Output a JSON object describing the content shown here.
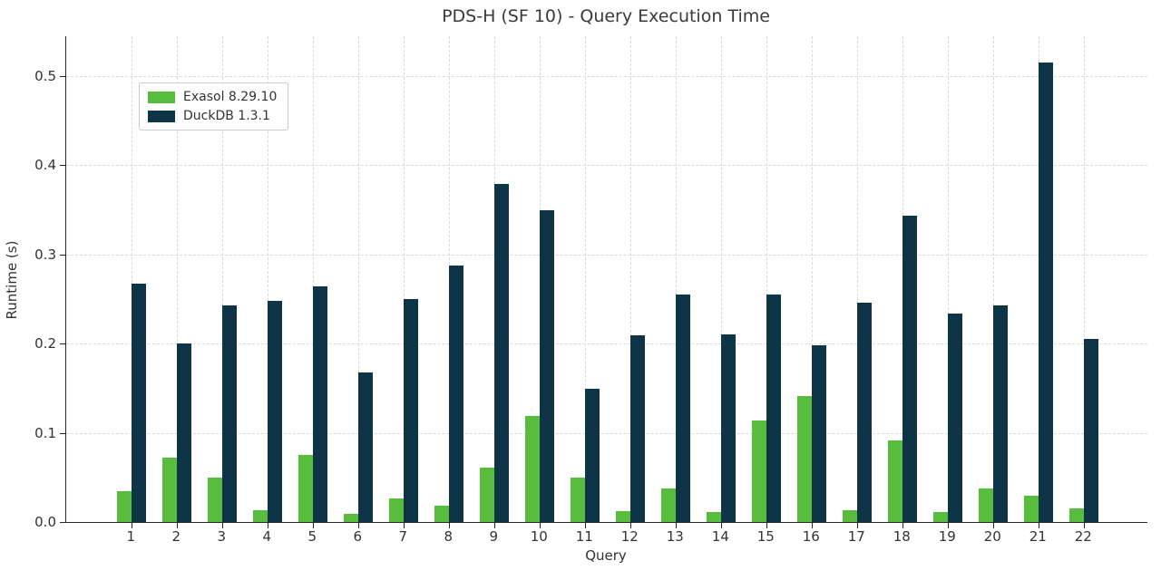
{
  "title": "PDS-H (SF 10) - Query Execution Time",
  "x_axis_label": "Query",
  "y_axis_label": "Runtime (s)",
  "legend": {
    "items": [
      {
        "label": "Exasol 8.29.10",
        "color": "#58bd3d"
      },
      {
        "label": "DuckDB 1.3.1",
        "color": "#0e3448"
      }
    ]
  },
  "chart_data": {
    "type": "bar",
    "title": "PDS-H (SF 10) - Query Execution Time",
    "xlabel": "Query",
    "ylabel": "Runtime (s)",
    "categories": [
      "1",
      "2",
      "3",
      "4",
      "5",
      "6",
      "7",
      "8",
      "9",
      "10",
      "11",
      "12",
      "13",
      "14",
      "15",
      "16",
      "17",
      "18",
      "19",
      "20",
      "21",
      "22"
    ],
    "series": [
      {
        "name": "Exasol 8.29.10",
        "color": "#58bd3d",
        "values": [
          0.035,
          0.072,
          0.05,
          0.013,
          0.075,
          0.009,
          0.026,
          0.018,
          0.061,
          0.119,
          0.05,
          0.012,
          0.038,
          0.011,
          0.114,
          0.141,
          0.013,
          0.091,
          0.011,
          0.038,
          0.029,
          0.015
        ]
      },
      {
        "name": "DuckDB 1.3.1",
        "color": "#0e3448",
        "values": [
          0.267,
          0.2,
          0.243,
          0.248,
          0.264,
          0.168,
          0.25,
          0.288,
          0.379,
          0.35,
          0.149,
          0.209,
          0.255,
          0.21,
          0.255,
          0.198,
          0.246,
          0.344,
          0.234,
          0.243,
          0.515,
          0.205
        ]
      }
    ],
    "ylim": [
      0.0,
      0.545
    ],
    "yticks": [
      0.0,
      0.1,
      0.2,
      0.3,
      0.4,
      0.5
    ],
    "grid": true,
    "grid_style": "dashed",
    "legend_position": "upper-left",
    "axis_color": "#262626",
    "grid_color": "#d9d9d9",
    "text_color": "#333333"
  }
}
